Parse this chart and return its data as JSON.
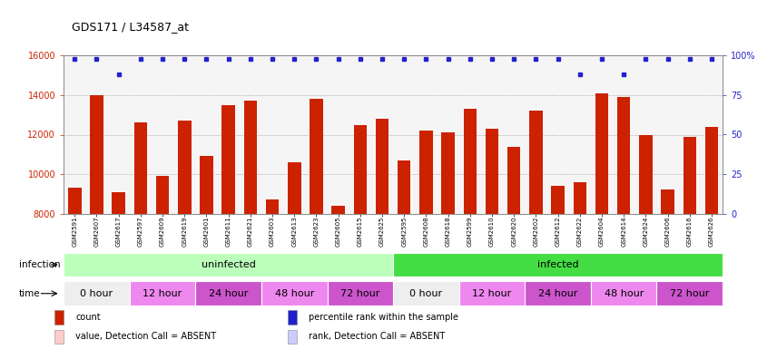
{
  "title": "GDS171 / L34587_at",
  "samples": [
    "GSM2591",
    "GSM2607",
    "GSM2617",
    "GSM2597",
    "GSM2609",
    "GSM2619",
    "GSM2601",
    "GSM2611",
    "GSM2621",
    "GSM2603",
    "GSM2613",
    "GSM2623",
    "GSM2605",
    "GSM2615",
    "GSM2625",
    "GSM2595",
    "GSM2608",
    "GSM2618",
    "GSM2599",
    "GSM2610",
    "GSM2620",
    "GSM2602",
    "GSM2612",
    "GSM2622",
    "GSM2604",
    "GSM2614",
    "GSM2624",
    "GSM2606",
    "GSM2616",
    "GSM2626"
  ],
  "bar_values": [
    9300,
    14000,
    9100,
    12600,
    9900,
    12700,
    10900,
    13500,
    13700,
    8700,
    10600,
    13800,
    8400,
    12500,
    12800,
    10700,
    12200,
    12100,
    13300,
    12300,
    11400,
    13200,
    9400,
    9600,
    14100,
    13900,
    12000,
    9200,
    11900,
    12400
  ],
  "percentile_values": [
    98,
    98,
    88,
    98,
    98,
    98,
    98,
    98,
    98,
    98,
    98,
    98,
    98,
    98,
    98,
    98,
    98,
    98,
    98,
    98,
    98,
    98,
    98,
    88,
    98,
    88,
    98,
    98,
    98,
    98
  ],
  "bar_color": "#cc2200",
  "dot_color": "#2222cc",
  "ylim_left": [
    8000,
    16000
  ],
  "ylim_right": [
    0,
    100
  ],
  "yticks_left": [
    8000,
    10000,
    12000,
    14000,
    16000
  ],
  "yticks_right": [
    0,
    25,
    50,
    75,
    100
  ],
  "ytick_labels_right": [
    "0",
    "25",
    "50",
    "75",
    "100%"
  ],
  "grid_values": [
    10000,
    12000,
    14000
  ],
  "infection_groups": [
    {
      "label": "uninfected",
      "start": 0,
      "end": 14,
      "color": "#bbffbb"
    },
    {
      "label": "infected",
      "start": 15,
      "end": 29,
      "color": "#44dd44"
    }
  ],
  "time_groups": [
    {
      "label": "0 hour",
      "start": 0,
      "end": 2,
      "color": "#eeeeee"
    },
    {
      "label": "12 hour",
      "start": 3,
      "end": 5,
      "color": "#ee88ee"
    },
    {
      "label": "24 hour",
      "start": 6,
      "end": 8,
      "color": "#cc55cc"
    },
    {
      "label": "48 hour",
      "start": 9,
      "end": 11,
      "color": "#ee88ee"
    },
    {
      "label": "72 hour",
      "start": 12,
      "end": 14,
      "color": "#cc55cc"
    },
    {
      "label": "0 hour",
      "start": 15,
      "end": 17,
      "color": "#eeeeee"
    },
    {
      "label": "12 hour",
      "start": 18,
      "end": 20,
      "color": "#ee88ee"
    },
    {
      "label": "24 hour",
      "start": 21,
      "end": 23,
      "color": "#cc55cc"
    },
    {
      "label": "48 hour",
      "start": 24,
      "end": 26,
      "color": "#ee88ee"
    },
    {
      "label": "72 hour",
      "start": 27,
      "end": 29,
      "color": "#cc55cc"
    }
  ],
  "legend_items": [
    {
      "label": "count",
      "color": "#cc2200"
    },
    {
      "label": "percentile rank within the sample",
      "color": "#2222cc"
    },
    {
      "label": "value, Detection Call = ABSENT",
      "color": "#ffcccc"
    },
    {
      "label": "rank, Detection Call = ABSENT",
      "color": "#ccccff"
    }
  ],
  "bar_bottom": 8000,
  "chart_bg": "#f5f5f5"
}
